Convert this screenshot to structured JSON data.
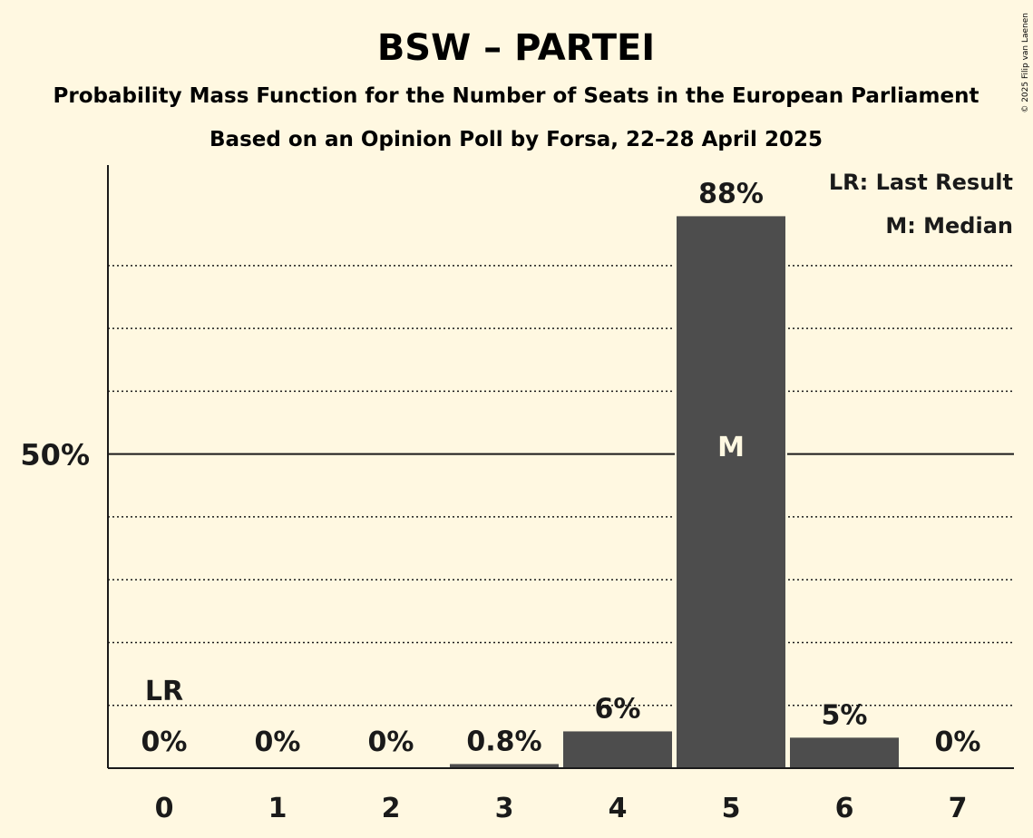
{
  "copyright": "© 2025 Filip van Laenen",
  "chart_data": {
    "type": "bar",
    "title": "BSW – PARTEI",
    "subtitle": "Probability Mass Function for the Number of Seats in the European Parliament",
    "subtitle2": "Based on an Opinion Poll by Forsa, 22–28 April 2025",
    "categories": [
      "0",
      "1",
      "2",
      "3",
      "4",
      "5",
      "6",
      "7"
    ],
    "values": [
      0,
      0,
      0,
      0.8,
      6,
      88,
      5,
      0
    ],
    "value_labels": [
      "0%",
      "0%",
      "0%",
      "0.8%",
      "6%",
      "88%",
      "5%",
      "0%"
    ],
    "ylim": [
      0,
      96
    ],
    "yticks": [
      {
        "value": 50,
        "label": "50%"
      }
    ],
    "minor_gridlines": [
      10,
      20,
      30,
      40,
      60,
      70,
      80
    ],
    "legend": {
      "placement": "top-right",
      "entries": [
        "LR: Last Result",
        "M: Median"
      ]
    },
    "markers": {
      "last_result": {
        "category": "0",
        "label": "LR"
      },
      "median": {
        "category": "5",
        "label": "M"
      }
    },
    "colors": {
      "background": "#fff8e1",
      "bar": "#4d4d4d",
      "text": "#1a1a1a",
      "median_text": "#fff8e1"
    }
  }
}
